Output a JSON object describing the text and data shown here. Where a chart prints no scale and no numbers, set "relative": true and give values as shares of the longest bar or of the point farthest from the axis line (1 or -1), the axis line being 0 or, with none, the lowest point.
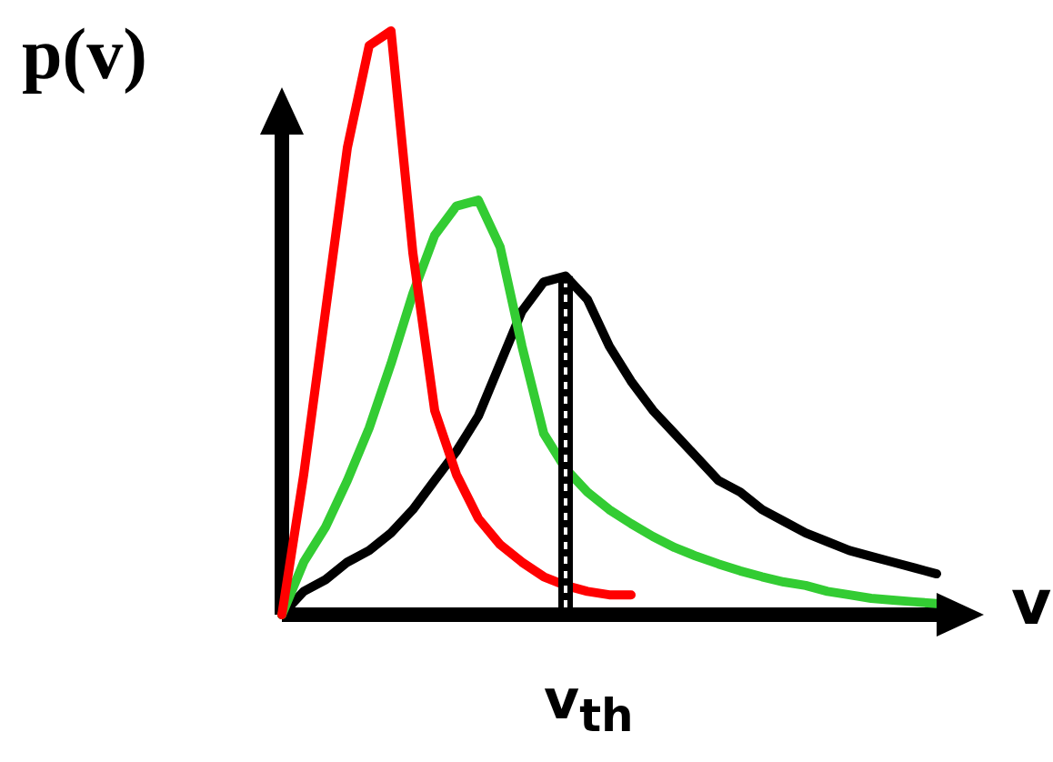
{
  "chart_data": {
    "type": "line",
    "relative": true,
    "ylabel": "p(v)",
    "xlabel": "v",
    "categories": [
      null,
      null,
      null,
      null,
      null,
      null,
      null,
      null,
      null,
      null,
      null,
      null,
      null,
      null,
      null,
      null,
      null,
      null,
      null,
      null,
      null,
      null,
      null,
      null,
      null,
      null,
      null,
      null,
      null,
      null,
      null
    ],
    "series": [
      {
        "color": "#ff0000",
        "values": [
          0,
          0.24,
          0.52,
          0.8,
          0.975,
          1,
          0.62,
          0.35,
          0.24,
          0.165,
          0.12,
          0.09,
          0.065,
          0.05,
          0.04,
          0.034,
          0.034,
          null,
          null,
          null,
          null,
          null,
          null,
          null,
          null,
          null,
          null,
          null,
          null,
          null,
          null
        ]
      },
      {
        "color": "#33cc33",
        "values": [
          0,
          0.09,
          0.15,
          0.23,
          0.32,
          0.43,
          0.55,
          0.65,
          0.7,
          0.71,
          0.63,
          0.46,
          0.31,
          0.25,
          0.21,
          0.18,
          0.156,
          0.134,
          0.115,
          0.1,
          0.087,
          0.075,
          0.065,
          0.056,
          0.05,
          0.04,
          0.034,
          0.028,
          0.025,
          0.022,
          0.019
        ]
      },
      {
        "color": "#000000",
        "values": [
          0,
          0.04,
          0.06,
          0.09,
          0.11,
          0.14,
          0.18,
          0.23,
          0.28,
          0.34,
          0.43,
          0.52,
          0.57,
          0.58,
          0.54,
          0.46,
          0.4,
          0.35,
          0.31,
          0.27,
          0.23,
          0.21,
          0.18,
          0.16,
          0.14,
          0.125,
          0.11,
          0.1,
          0.09,
          0.08,
          0.07
        ]
      }
    ],
    "annotations": [
      "v$_{th}$"
    ],
    "legend": false,
    "marker": "none",
    "line_style": "solid"
  }
}
